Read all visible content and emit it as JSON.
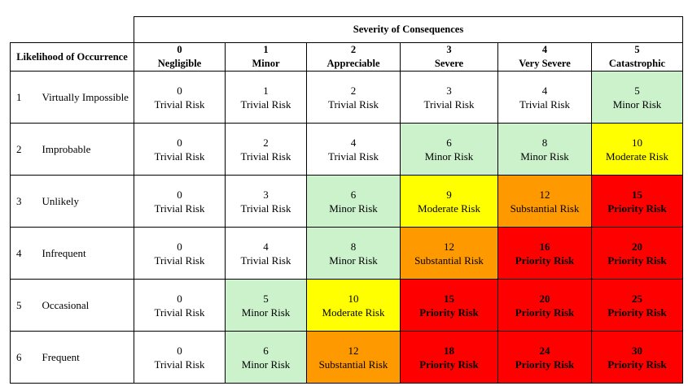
{
  "header": {
    "severity_title": "Severity of Consequences",
    "likelihood_title": "Likelihood of Occurrence"
  },
  "severity_columns": [
    {
      "num": "0",
      "label": "Negligible"
    },
    {
      "num": "1",
      "label": "Minor"
    },
    {
      "num": "2",
      "label": "Appreciable"
    },
    {
      "num": "3",
      "label": "Severe"
    },
    {
      "num": "4",
      "label": "Very Severe"
    },
    {
      "num": "5",
      "label": "Catastrophic"
    }
  ],
  "risk_colors": {
    "Trivial Risk": "#ffffff",
    "Minor Risk": "#ccf2cc",
    "Moderate Risk": "#ffff00",
    "Substantial Risk": "#ff9900",
    "Priority Risk": "#ff0000"
  },
  "rows": [
    {
      "num": "1",
      "label": "Virtually Impossible",
      "cells": [
        {
          "score": "0",
          "risk": "Trivial Risk"
        },
        {
          "score": "1",
          "risk": "Trivial Risk"
        },
        {
          "score": "2",
          "risk": "Trivial Risk"
        },
        {
          "score": "3",
          "risk": "Trivial Risk"
        },
        {
          "score": "4",
          "risk": "Trivial Risk"
        },
        {
          "score": "5",
          "risk": "Minor Risk"
        }
      ]
    },
    {
      "num": "2",
      "label": "Improbable",
      "cells": [
        {
          "score": "0",
          "risk": "Trivial Risk"
        },
        {
          "score": "2",
          "risk": "Trivial Risk"
        },
        {
          "score": "4",
          "risk": "Trivial Risk"
        },
        {
          "score": "6",
          "risk": "Minor Risk"
        },
        {
          "score": "8",
          "risk": "Minor Risk"
        },
        {
          "score": "10",
          "risk": "Moderate Risk"
        }
      ]
    },
    {
      "num": "3",
      "label": "Unlikely",
      "cells": [
        {
          "score": "0",
          "risk": "Trivial Risk"
        },
        {
          "score": "3",
          "risk": "Trivial Risk"
        },
        {
          "score": "6",
          "risk": "Minor Risk"
        },
        {
          "score": "9",
          "risk": "Moderate Risk"
        },
        {
          "score": "12",
          "risk": "Substantial Risk"
        },
        {
          "score": "15",
          "risk": "Priority Risk"
        }
      ]
    },
    {
      "num": "4",
      "label": "Infrequent",
      "cells": [
        {
          "score": "0",
          "risk": "Trivial Risk"
        },
        {
          "score": "4",
          "risk": "Trivial Risk"
        },
        {
          "score": "8",
          "risk": "Minor Risk"
        },
        {
          "score": "12",
          "risk": "Substantial Risk"
        },
        {
          "score": "16",
          "risk": "Priority Risk"
        },
        {
          "score": "20",
          "risk": "Priority Risk"
        }
      ]
    },
    {
      "num": "5",
      "label": "Occasional",
      "cells": [
        {
          "score": "0",
          "risk": "Trivial Risk"
        },
        {
          "score": "5",
          "risk": "Minor Risk"
        },
        {
          "score": "10",
          "risk": "Moderate Risk"
        },
        {
          "score": "15",
          "risk": "Priority Risk"
        },
        {
          "score": "20",
          "risk": "Priority Risk"
        },
        {
          "score": "25",
          "risk": "Priority Risk"
        }
      ]
    },
    {
      "num": "6",
      "label": "Frequent",
      "cells": [
        {
          "score": "0",
          "risk": "Trivial Risk"
        },
        {
          "score": "6",
          "risk": "Minor Risk"
        },
        {
          "score": "12",
          "risk": "Substantial Risk"
        },
        {
          "score": "18",
          "risk": "Priority Risk"
        },
        {
          "score": "24",
          "risk": "Priority Risk"
        },
        {
          "score": "30",
          "risk": "Priority Risk"
        }
      ]
    }
  ]
}
